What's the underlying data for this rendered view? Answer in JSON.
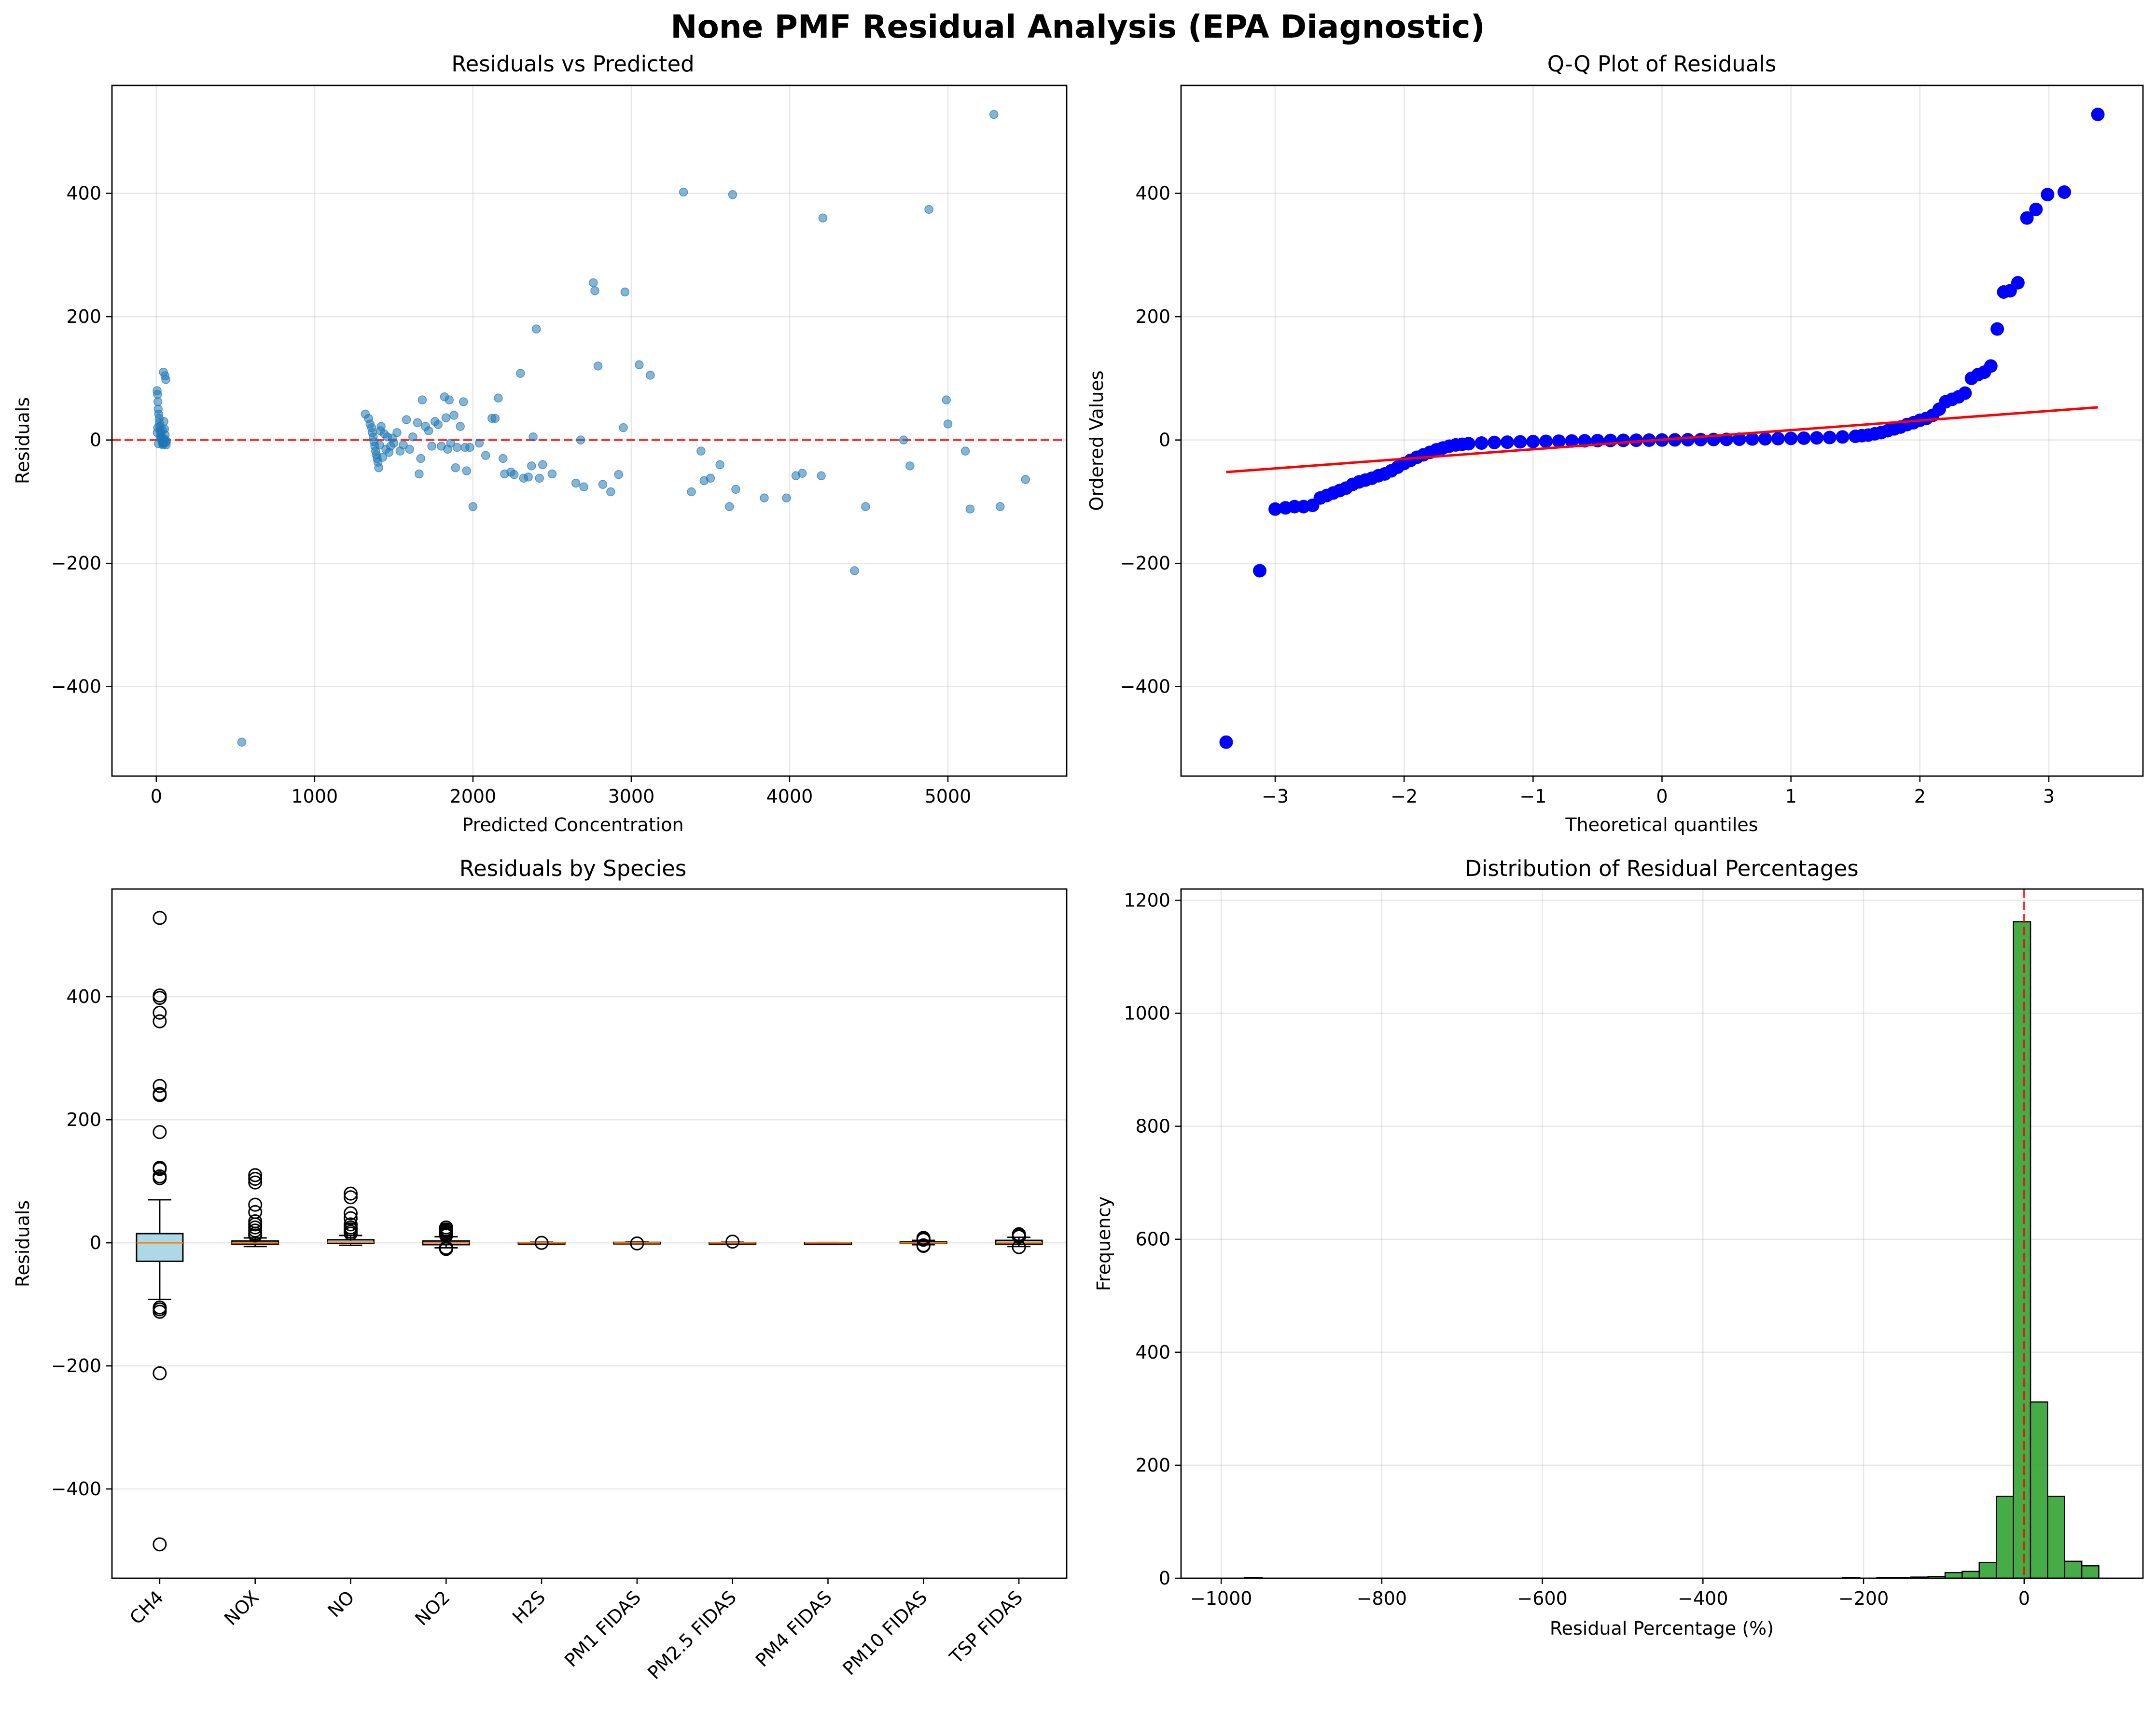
{
  "title": "None PMF Residual Analysis (EPA Diagnostic)",
  "chart_data": [
    {
      "type": "scatter",
      "title": "Residuals vs Predicted",
      "xlabel": "Predicted Concentration",
      "ylabel": "Residuals",
      "xlim": [
        -280,
        5750
      ],
      "ylim": [
        -545,
        575
      ],
      "xticks": [
        0,
        1000,
        2000,
        3000,
        4000,
        5000
      ],
      "yticks": [
        -400,
        -200,
        0,
        200,
        400
      ],
      "grid": true,
      "color": "#1f77b4",
      "reference_line": {
        "y": 0,
        "color": "#ff0000",
        "style": "dashed"
      },
      "points": [
        [
          5,
          80
        ],
        [
          8,
          74
        ],
        [
          10,
          62
        ],
        [
          12,
          50
        ],
        [
          15,
          42
        ],
        [
          18,
          35
        ],
        [
          20,
          28
        ],
        [
          22,
          22
        ],
        [
          25,
          15
        ],
        [
          28,
          10
        ],
        [
          30,
          6
        ],
        [
          32,
          3
        ],
        [
          34,
          0
        ],
        [
          36,
          -2
        ],
        [
          38,
          -4
        ],
        [
          40,
          -6
        ],
        [
          42,
          -8
        ],
        [
          44,
          -5
        ],
        [
          46,
          -3
        ],
        [
          48,
          0
        ],
        [
          50,
          2
        ],
        [
          45,
          110
        ],
        [
          55,
          104
        ],
        [
          60,
          98
        ],
        [
          48,
          30
        ],
        [
          52,
          18
        ],
        [
          56,
          8
        ],
        [
          58,
          -4
        ],
        [
          62,
          -8
        ],
        [
          65,
          -2
        ],
        [
          6,
          12
        ],
        [
          9,
          20
        ],
        [
          14,
          -6
        ],
        [
          24,
          4
        ],
        [
          40,
          16
        ],
        [
          540,
          -490
        ],
        [
          1320,
          42
        ],
        [
          1340,
          35
        ],
        [
          1350,
          26
        ],
        [
          1360,
          20
        ],
        [
          1365,
          12
        ],
        [
          1370,
          5
        ],
        [
          1375,
          -3
        ],
        [
          1380,
          -10
        ],
        [
          1385,
          -18
        ],
        [
          1390,
          -24
        ],
        [
          1395,
          -30
        ],
        [
          1400,
          -36
        ],
        [
          1405,
          -45
        ],
        [
          1410,
          -8
        ],
        [
          1415,
          15
        ],
        [
          1420,
          22
        ],
        [
          1430,
          -28
        ],
        [
          1440,
          10
        ],
        [
          1450,
          -15
        ],
        [
          1460,
          5
        ],
        [
          1470,
          -20
        ],
        [
          1480,
          -10
        ],
        [
          1490,
          3
        ],
        [
          1500,
          -5
        ],
        [
          1520,
          12
        ],
        [
          1540,
          -18
        ],
        [
          1560,
          -8
        ],
        [
          1580,
          33
        ],
        [
          1600,
          -15
        ],
        [
          1620,
          5
        ],
        [
          1650,
          28
        ],
        [
          1660,
          -55
        ],
        [
          1670,
          -30
        ],
        [
          1680,
          65
        ],
        [
          1700,
          22
        ],
        [
          1720,
          15
        ],
        [
          1740,
          -10
        ],
        [
          1760,
          30
        ],
        [
          1780,
          25
        ],
        [
          1800,
          -10
        ],
        [
          1820,
          70
        ],
        [
          1830,
          36
        ],
        [
          1840,
          -15
        ],
        [
          1850,
          65
        ],
        [
          1860,
          -5
        ],
        [
          1880,
          40
        ],
        [
          1890,
          -45
        ],
        [
          1900,
          -12
        ],
        [
          1920,
          22
        ],
        [
          1940,
          62
        ],
        [
          1950,
          -12
        ],
        [
          1960,
          -50
        ],
        [
          1980,
          -12
        ],
        [
          2000,
          -108
        ],
        [
          2040,
          -5
        ],
        [
          2080,
          -25
        ],
        [
          2120,
          35
        ],
        [
          2140,
          35
        ],
        [
          2160,
          68
        ],
        [
          2190,
          -30
        ],
        [
          2200,
          -55
        ],
        [
          2240,
          -52
        ],
        [
          2260,
          -56
        ],
        [
          2300,
          108
        ],
        [
          2320,
          -62
        ],
        [
          2350,
          -60
        ],
        [
          2370,
          -42
        ],
        [
          2380,
          5
        ],
        [
          2400,
          180
        ],
        [
          2420,
          -62
        ],
        [
          2440,
          -40
        ],
        [
          2500,
          -55
        ],
        [
          2650,
          -70
        ],
        [
          2680,
          0
        ],
        [
          2700,
          -76
        ],
        [
          2760,
          255
        ],
        [
          2770,
          242
        ],
        [
          2790,
          120
        ],
        [
          2820,
          -72
        ],
        [
          2870,
          -84
        ],
        [
          2920,
          -56
        ],
        [
          2950,
          20
        ],
        [
          2960,
          240
        ],
        [
          3050,
          122
        ],
        [
          3120,
          105
        ],
        [
          3330,
          402
        ],
        [
          3380,
          -84
        ],
        [
          3440,
          -18
        ],
        [
          3460,
          -66
        ],
        [
          3500,
          -62
        ],
        [
          3560,
          -40
        ],
        [
          3620,
          -108
        ],
        [
          3640,
          398
        ],
        [
          3660,
          -80
        ],
        [
          3840,
          -94
        ],
        [
          3980,
          -94
        ],
        [
          4040,
          -58
        ],
        [
          4080,
          -54
        ],
        [
          4200,
          -58
        ],
        [
          4210,
          360
        ],
        [
          4410,
          -212
        ],
        [
          4480,
          -108
        ],
        [
          4720,
          0
        ],
        [
          4760,
          -42
        ],
        [
          4880,
          374
        ],
        [
          4990,
          65
        ],
        [
          5000,
          26
        ],
        [
          5110,
          -18
        ],
        [
          5140,
          -112
        ],
        [
          5290,
          528
        ],
        [
          5330,
          -108
        ],
        [
          5490,
          -64
        ]
      ]
    },
    {
      "type": "scatter",
      "title": "Q-Q Plot of Residuals",
      "xlabel": "Theoretical quantiles",
      "ylabel": "Ordered Values",
      "xlim": [
        -3.73,
        3.73
      ],
      "ylim": [
        -545,
        575
      ],
      "xticks": [
        -3,
        -2,
        -1,
        0,
        1,
        2,
        3
      ],
      "yticks": [
        -400,
        -200,
        0,
        200,
        400
      ],
      "grid": true,
      "color": "#0000ff",
      "fit_line": {
        "x": [
          -3.38,
          3.38
        ],
        "y": [
          -52,
          53
        ],
        "color": "#ff0000"
      },
      "points": [
        [
          -3.38,
          -490
        ],
        [
          -3.12,
          -212
        ],
        [
          -3.0,
          -112
        ],
        [
          -2.92,
          -110
        ],
        [
          -2.85,
          -108
        ],
        [
          -2.78,
          -108
        ],
        [
          -2.71,
          -106
        ],
        [
          -2.65,
          -94
        ],
        [
          -2.6,
          -90
        ],
        [
          -2.55,
          -86
        ],
        [
          -2.5,
          -82
        ],
        [
          -2.45,
          -78
        ],
        [
          -2.4,
          -72
        ],
        [
          -2.35,
          -68
        ],
        [
          -2.3,
          -65
        ],
        [
          -2.25,
          -62
        ],
        [
          -2.2,
          -58
        ],
        [
          -2.15,
          -55
        ],
        [
          -2.1,
          -50
        ],
        [
          -2.05,
          -44
        ],
        [
          -2.0,
          -38
        ],
        [
          -1.95,
          -33
        ],
        [
          -1.9,
          -28
        ],
        [
          -1.85,
          -24
        ],
        [
          -1.8,
          -20
        ],
        [
          -1.75,
          -16
        ],
        [
          -1.7,
          -13
        ],
        [
          -1.65,
          -10
        ],
        [
          -1.6,
          -8
        ],
        [
          -1.55,
          -7
        ],
        [
          -1.5,
          -6
        ],
        [
          -1.4,
          -5
        ],
        [
          -1.3,
          -4
        ],
        [
          -1.2,
          -3.5
        ],
        [
          -1.1,
          -3
        ],
        [
          -1.0,
          -2.6
        ],
        [
          -0.9,
          -2.2
        ],
        [
          -0.8,
          -1.9
        ],
        [
          -0.7,
          -1.6
        ],
        [
          -0.6,
          -1.3
        ],
        [
          -0.5,
          -1.0
        ],
        [
          -0.4,
          -0.8
        ],
        [
          -0.3,
          -0.6
        ],
        [
          -0.2,
          -0.4
        ],
        [
          -0.1,
          -0.2
        ],
        [
          0.0,
          0
        ],
        [
          0.1,
          0.2
        ],
        [
          0.2,
          0.4
        ],
        [
          0.3,
          0.6
        ],
        [
          0.4,
          0.8
        ],
        [
          0.5,
          1.0
        ],
        [
          0.6,
          1.3
        ],
        [
          0.7,
          1.6
        ],
        [
          0.8,
          1.9
        ],
        [
          0.9,
          2.2
        ],
        [
          1.0,
          2.6
        ],
        [
          1.1,
          3
        ],
        [
          1.2,
          3.5
        ],
        [
          1.3,
          4
        ],
        [
          1.4,
          5
        ],
        [
          1.5,
          6
        ],
        [
          1.55,
          7
        ],
        [
          1.6,
          8
        ],
        [
          1.65,
          10
        ],
        [
          1.7,
          12
        ],
        [
          1.75,
          15
        ],
        [
          1.8,
          18
        ],
        [
          1.85,
          21
        ],
        [
          1.9,
          25
        ],
        [
          1.95,
          28
        ],
        [
          2.0,
          32
        ],
        [
          2.05,
          35
        ],
        [
          2.1,
          40
        ],
        [
          2.15,
          50
        ],
        [
          2.2,
          62
        ],
        [
          2.25,
          66
        ],
        [
          2.3,
          70
        ],
        [
          2.35,
          76
        ],
        [
          2.4,
          100
        ],
        [
          2.45,
          106
        ],
        [
          2.5,
          110
        ],
        [
          2.55,
          120
        ],
        [
          2.6,
          180
        ],
        [
          2.65,
          240
        ],
        [
          2.7,
          242
        ],
        [
          2.76,
          255
        ],
        [
          2.83,
          360
        ],
        [
          2.9,
          374
        ],
        [
          2.99,
          398
        ],
        [
          3.12,
          402
        ],
        [
          3.38,
          528
        ]
      ]
    },
    {
      "type": "box",
      "title": "Residuals by Species",
      "xlabel": "",
      "ylabel": "Residuals",
      "ylim": [
        -545,
        575
      ],
      "yticks": [
        -400,
        -200,
        0,
        200,
        400
      ],
      "grid": true,
      "box_fill": "#add8e6",
      "median_color": "#ff7f0e",
      "categories": [
        "CH4",
        "NOX",
        "NO",
        "NO2",
        "H2S",
        "PM1 FIDAS",
        "PM2.5 FIDAS",
        "PM4 FIDAS",
        "PM10 FIDAS",
        "TSP FIDAS"
      ],
      "boxes": [
        {
          "q1": -30,
          "median": 0,
          "q3": 15,
          "whisker_low": -92,
          "whisker_high": 70,
          "outliers": [
            528,
            402,
            398,
            374,
            360,
            255,
            242,
            240,
            180,
            122,
            120,
            108,
            105,
            -105,
            -108,
            -112,
            -212,
            -490
          ]
        },
        {
          "q1": -2,
          "median": 0,
          "q3": 3,
          "whisker_low": -6,
          "whisker_high": 8,
          "outliers": [
            110,
            104,
            98,
            62,
            50,
            35,
            30,
            25,
            20,
            15,
            12
          ]
        },
        {
          "q1": -1,
          "median": 1,
          "q3": 5,
          "whisker_low": -4,
          "whisker_high": 12,
          "outliers": [
            80,
            74,
            48,
            40,
            30,
            25,
            22,
            18,
            15
          ]
        },
        {
          "q1": -3,
          "median": 0,
          "q3": 3,
          "whisker_low": -8,
          "whisker_high": 10,
          "outliers": [
            25,
            22,
            20,
            18,
            16,
            14,
            12,
            -8,
            -10
          ]
        },
        {
          "q1": -0.5,
          "median": 0,
          "q3": 0.5,
          "whisker_low": -1,
          "whisker_high": 1,
          "outliers": [
            0
          ]
        },
        {
          "q1": -0.7,
          "median": 0,
          "q3": 0.7,
          "whisker_low": -1.2,
          "whisker_high": 1.2,
          "outliers": [
            -1
          ]
        },
        {
          "q1": -0.5,
          "median": 0,
          "q3": 0.5,
          "whisker_low": -1,
          "whisker_high": 1,
          "outliers": [
            2
          ]
        },
        {
          "q1": -0.3,
          "median": 0,
          "q3": 0.3,
          "whisker_low": -0.6,
          "whisker_high": 0.6,
          "outliers": []
        },
        {
          "q1": -1,
          "median": 0,
          "q3": 1.5,
          "whisker_low": -3,
          "whisker_high": 4,
          "outliers": [
            8,
            6,
            5,
            -4,
            -5
          ]
        },
        {
          "q1": -2,
          "median": 0,
          "q3": 4,
          "whisker_low": -6,
          "whisker_high": 9,
          "outliers": [
            14,
            12,
            10,
            -7
          ]
        }
      ]
    },
    {
      "type": "bar",
      "title": "Distribution of Residual Percentages",
      "xlabel": "Residual Percentage (%)",
      "ylabel": "Frequency",
      "xlim": [
        -1050,
        148
      ],
      "ylim": [
        0,
        1220
      ],
      "xticks": [
        -1000,
        -800,
        -600,
        -400,
        -200,
        0
      ],
      "yticks": [
        0,
        200,
        400,
        600,
        800,
        1000,
        1200
      ],
      "grid": true,
      "bar_color": "#2ca02c",
      "reference_line": {
        "x": 0,
        "color": "#ff0000",
        "style": "dashed"
      },
      "bin_width": 21.27,
      "bins": [
        [
          -970.4,
          1
        ],
        [
          -970.4,
          1
        ],
        [
          -226.0,
          1
        ],
        [
          -183.4,
          1
        ],
        [
          -162.2,
          1
        ],
        [
          -141.0,
          2
        ],
        [
          -119.7,
          3
        ],
        [
          -98.4,
          10
        ],
        [
          -77.1,
          12
        ],
        [
          -55.9,
          28
        ],
        [
          -34.6,
          145
        ],
        [
          -13.3,
          1162
        ],
        [
          7.9,
          312
        ],
        [
          29.2,
          145
        ],
        [
          50.5,
          30
        ],
        [
          71.7,
          22
        ]
      ]
    }
  ]
}
